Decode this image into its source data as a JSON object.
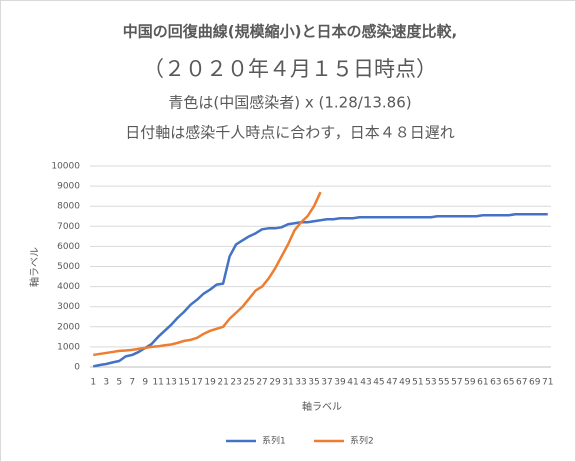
{
  "chart_data": {
    "type": "line",
    "title": "中国の回復曲線(規模縮小)と日本の感染速度比較,",
    "subtitle": "（２０２０年４月１５日時点）",
    "annotations": [
      "青色は(中国感染者) x (1.28/13.86)",
      "日付軸は感染千人時点に合わす，日本４８日遅れ"
    ],
    "x_label": "軸ラベル",
    "y_label": "軸ラベル",
    "categories": [
      1,
      null,
      3,
      null,
      5,
      null,
      7,
      null,
      9,
      null,
      11,
      null,
      13,
      null,
      15,
      null,
      17,
      null,
      19,
      null,
      21,
      null,
      23,
      null,
      25,
      null,
      27,
      null,
      29,
      null,
      31,
      null,
      33,
      null,
      35,
      null,
      37,
      null,
      39,
      null,
      41,
      null,
      43,
      null,
      45,
      null,
      47,
      null,
      49,
      null,
      51,
      null,
      53,
      null,
      55,
      null,
      57,
      null,
      59,
      null,
      61,
      null,
      63,
      null,
      65,
      null,
      67,
      null,
      69,
      null,
      71
    ],
    "series": [
      {
        "name": "系列1",
        "color": "#4472c4",
        "values": [
          30,
          100,
          150,
          230,
          300,
          530,
          600,
          750,
          950,
          1150,
          1500,
          1800,
          2100,
          2450,
          2750,
          3100,
          3350,
          3650,
          3850,
          4100,
          4150,
          5500,
          6100,
          6300,
          6500,
          6650,
          6850,
          6900,
          6900,
          6950,
          7100,
          7150,
          7200,
          7200,
          7250,
          7300,
          7350,
          7350,
          7400,
          7400,
          7400,
          7450,
          7450,
          7450,
          7450,
          7450,
          7450,
          7450,
          7450,
          7450,
          7450,
          7450,
          7450,
          7500,
          7500,
          7500,
          7500,
          7500,
          7500,
          7500,
          7550,
          7550,
          7550,
          7550,
          7550,
          7600,
          7600,
          7600,
          7600,
          7600,
          7600
        ]
      },
      {
        "name": "系列2",
        "color": "#ed7d31",
        "values": [
          600,
          650,
          700,
          750,
          800,
          820,
          850,
          900,
          950,
          1000,
          1030,
          1080,
          1120,
          1200,
          1300,
          1350,
          1450,
          1650,
          1800,
          1900,
          2000,
          2400,
          2700,
          3000,
          3400,
          3800,
          4000,
          4400,
          4900,
          5500,
          6100,
          6800,
          7200,
          7500,
          8000,
          8700,
          null,
          null,
          null,
          null,
          null,
          null,
          null,
          null,
          null,
          null,
          null,
          null,
          null,
          null,
          null,
          null,
          null,
          null,
          null,
          null,
          null,
          null,
          null,
          null,
          null,
          null,
          null,
          null,
          null,
          null,
          null,
          null,
          null,
          null,
          null
        ]
      }
    ],
    "ylim": [
      0,
      10000
    ],
    "yticks": [
      0,
      1000,
      2000,
      3000,
      4000,
      5000,
      6000,
      7000,
      8000,
      9000,
      10000
    ],
    "grid": true,
    "legend": "bottom"
  }
}
